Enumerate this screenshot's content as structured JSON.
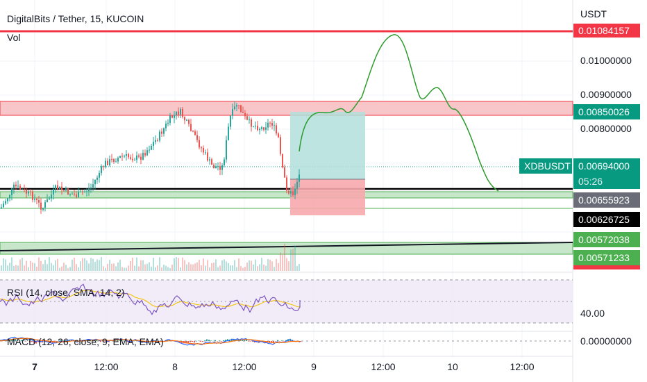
{
  "header": {
    "symbol_title": "DigitalBits / Tether, 15, KUCOIN",
    "volume_label": "Vol"
  },
  "price_axis": {
    "currency": "USDT",
    "ticks": [
      "0.01000000",
      "0.00900000",
      "0.00800000"
    ]
  },
  "price_labels": {
    "red_top": "0.01084157",
    "red_zone": "0.00850026",
    "symbol_name": "XDBUSDT",
    "last_price": "0.00694000",
    "countdown": "05:26",
    "gray_level": "0.00655923",
    "black_level": "0.00626725",
    "green_zone_top": "0.00572038",
    "green_zone_bottom": "0.00571233"
  },
  "rsi": {
    "title": "RSI (14, close, SMA, 14, 2)",
    "axis_value": "40.00"
  },
  "macd": {
    "title": "MACD (12, 26, close, 9, EMA, EMA)",
    "axis_value": "0.00000000"
  },
  "time_axis": {
    "labels": [
      "7",
      "12:00",
      "8",
      "12:00",
      "9",
      "12:00",
      "10",
      "12:00"
    ]
  },
  "colors": {
    "up": "#26a69a",
    "down": "#ef5350",
    "red_line": "#f23645",
    "green_zone": "#c8e6c9",
    "red_zone": "#f8c5c8",
    "projection": "#2e9b2e",
    "rsi_line": "#7e57c2",
    "rsi_ma": "#f5c518",
    "label_green": "#089981",
    "label_gray": "#6a6d78",
    "label_black": "#000000",
    "label_bright_green": "#4caf50",
    "label_red": "#f23645"
  }
}
